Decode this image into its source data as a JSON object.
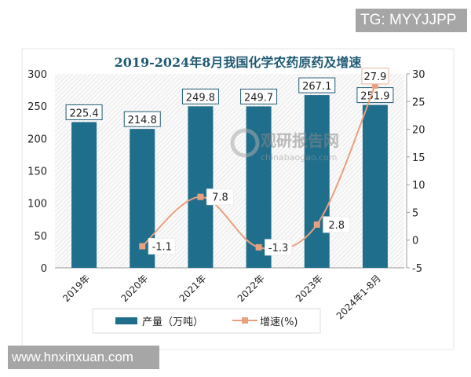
{
  "watermarks": {
    "top": "TG: MYYJJPP",
    "bottom": "www.hnxinxuan.com",
    "logo_cn": "观研报告网",
    "logo_url": "chinabaogao.com"
  },
  "chart_data": {
    "type": "bar+line",
    "title": "2019-2024年8月我国化学农药原药及增速",
    "categories": [
      "2019年",
      "2020年",
      "2021年",
      "2022年",
      "2023年",
      "2024年1-8月"
    ],
    "series": [
      {
        "name": "产量（万吨）",
        "type": "bar",
        "axis": "left",
        "values": [
          225.4,
          214.8,
          249.8,
          249.7,
          267.1,
          251.9
        ],
        "color": "#1f6e8c"
      },
      {
        "name": "增速(%)",
        "type": "line",
        "axis": "right",
        "values": [
          null,
          -1.1,
          7.8,
          -1.3,
          2.8,
          27.9
        ],
        "color": "#e8a07e"
      }
    ],
    "left_axis": {
      "range": [
        0,
        300
      ],
      "ticks": [
        "0",
        "50",
        "100",
        "150",
        "200",
        "250",
        "300"
      ]
    },
    "right_axis": {
      "range": [
        -5,
        30
      ],
      "ticks": [
        "-5",
        "0",
        "5",
        "10",
        "15",
        "20",
        "25",
        "30"
      ]
    },
    "legend": "bottom"
  }
}
